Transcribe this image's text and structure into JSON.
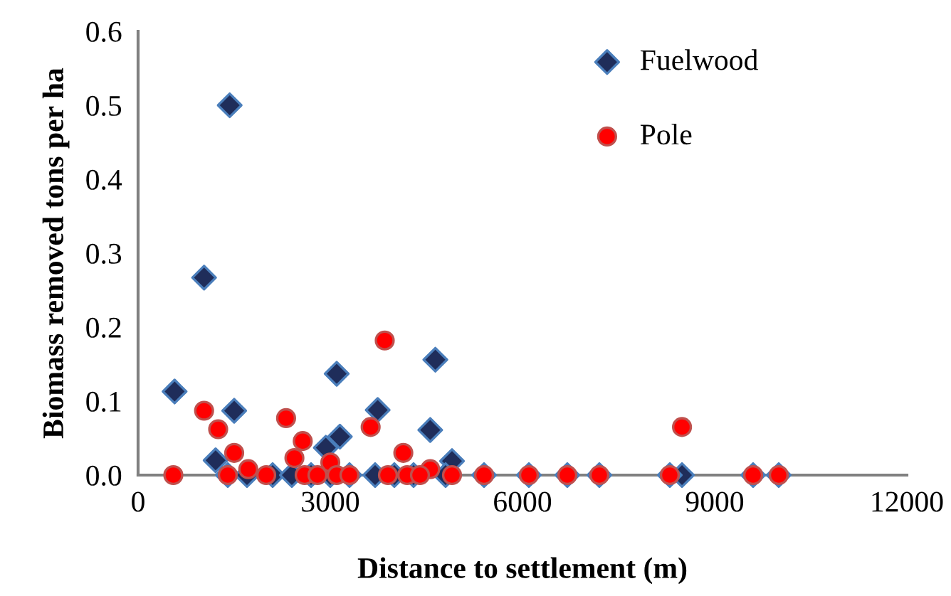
{
  "chart_data": {
    "type": "scatter",
    "xlabel": "Distance to settlement (m)",
    "ylabel": "Biomass removed tons per ha",
    "xlim": [
      0,
      12000
    ],
    "ylim": [
      0,
      0.6
    ],
    "xticks": [
      0,
      3000,
      6000,
      9000,
      12000
    ],
    "yticks": [
      {
        "value": 0,
        "label": "0.0"
      },
      0.1,
      0.2,
      0.3,
      0.4,
      0.5,
      0.6
    ],
    "grid": false,
    "legend": "top right",
    "series": [
      {
        "name": "Fuelwood",
        "color": "#1f2d5a",
        "marker": "diamond",
        "x": [
          570,
          1030,
          1430,
          1500,
          3100,
          3740,
          3150,
          2930,
          1210,
          1900,
          4640,
          4560,
          4900,
          8490,
          1400,
          1700,
          2100,
          2400,
          2700,
          3000,
          3300,
          3700,
          4000,
          4300,
          4800,
          5400,
          6100,
          6700,
          7200,
          8300,
          9600,
          10000
        ],
        "values": [
          0.113,
          0.267,
          0.5,
          0.087,
          0.137,
          0.088,
          0.052,
          0.037,
          0.02,
          null,
          0.156,
          0.061,
          0.019,
          0,
          0,
          0,
          0,
          0,
          0,
          0,
          0,
          0,
          0,
          0,
          0,
          0,
          0,
          0,
          0,
          0,
          0,
          0
        ]
      },
      {
        "name": "Pole",
        "color": "#ff0000",
        "marker": "circle",
        "x": [
          550,
          1030,
          1250,
          2310,
          2570,
          3630,
          3850,
          4140,
          1500,
          2440,
          3000,
          1720,
          4560,
          8490,
          1400,
          2000,
          2600,
          2800,
          3100,
          3300,
          3900,
          4200,
          4400,
          4900,
          5400,
          6100,
          6700,
          7200,
          8300,
          9600,
          10000
        ],
        "values": [
          0,
          0.087,
          0.062,
          0.077,
          0.046,
          0.065,
          0.182,
          0.03,
          0.03,
          0.023,
          0.017,
          0.008,
          0.008,
          0.065,
          0,
          0,
          0,
          0,
          0,
          0,
          0,
          0,
          0,
          0,
          0,
          0,
          0,
          0,
          0,
          0,
          0
        ]
      }
    ]
  }
}
